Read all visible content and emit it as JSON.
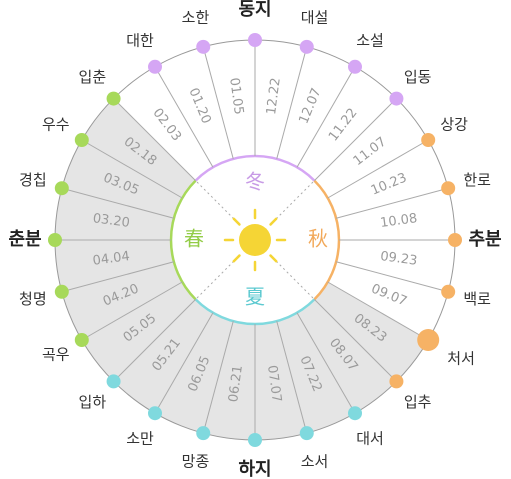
{
  "center": {
    "top": "冬",
    "right": "秋",
    "bottom": "夏",
    "left": "春"
  },
  "terms": [
    {
      "name": "동지",
      "date": "12.22"
    },
    {
      "name": "대설",
      "date": "12.07"
    },
    {
      "name": "소설",
      "date": "11.22"
    },
    {
      "name": "입동",
      "date": "11.07"
    },
    {
      "name": "상강",
      "date": "10.23"
    },
    {
      "name": "한로",
      "date": "10.08"
    },
    {
      "name": "추분",
      "date": "09.23"
    },
    {
      "name": "백로",
      "date": "09.07"
    },
    {
      "name": "처서",
      "date": "08.23"
    },
    {
      "name": "입추",
      "date": "08.07"
    },
    {
      "name": "대서",
      "date": "07.22"
    },
    {
      "name": "소서",
      "date": "07.07"
    },
    {
      "name": "하지",
      "date": "06.21"
    },
    {
      "name": "망종",
      "date": "06.05"
    },
    {
      "name": "소만",
      "date": "05.21"
    },
    {
      "name": "입하",
      "date": "05.05"
    },
    {
      "name": "곡우",
      "date": "04.20"
    },
    {
      "name": "청명",
      "date": "04.04"
    },
    {
      "name": "춘분",
      "date": "03.20"
    },
    {
      "name": "경칩",
      "date": "03.05"
    },
    {
      "name": "우수",
      "date": "02.18"
    },
    {
      "name": "입춘",
      "date": "02.03"
    },
    {
      "name": "대한",
      "date": "01.20"
    },
    {
      "name": "소한",
      "date": "01.05"
    }
  ]
}
